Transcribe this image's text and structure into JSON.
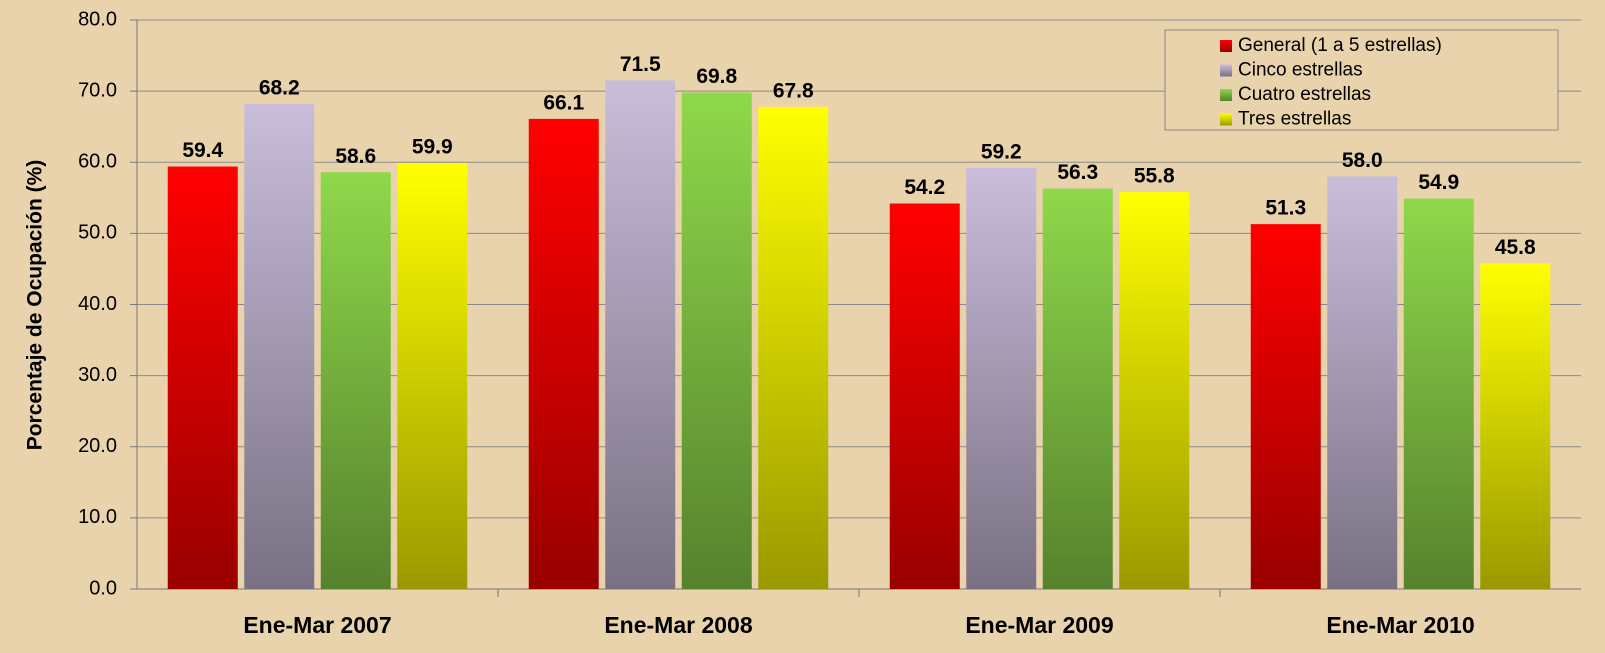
{
  "chart_data": {
    "type": "bar",
    "y_label": "Porcentaje de Ocupación (%)",
    "categories": [
      "Ene-Mar 2007",
      "Ene-Mar 2008",
      "Ene-Mar 2009",
      "Ene-Mar 2010"
    ],
    "series": [
      {
        "name": "General  (1 a 5 estrellas)",
        "color": "#ff0000",
        "values": [
          59.4,
          66.1,
          54.2,
          51.3
        ],
        "value_labels": [
          "59.4",
          "66.1",
          "54.2",
          "51.3"
        ]
      },
      {
        "name": "Cinco estrellas",
        "color": "#c9bddb",
        "values": [
          68.2,
          71.5,
          59.2,
          58.0
        ],
        "value_labels": [
          "68.2",
          "71.5",
          "59.2",
          "58.0"
        ]
      },
      {
        "name": "Cuatro estrellas",
        "color": "#8fd84b",
        "values": [
          58.6,
          69.8,
          56.3,
          54.9
        ],
        "value_labels": [
          "58.6",
          "69.8",
          "56.3",
          "54.9"
        ]
      },
      {
        "name": "Tres estrellas",
        "color": "#ffff00",
        "values": [
          59.9,
          67.8,
          55.8,
          45.8
        ],
        "value_labels": [
          "59.9",
          "67.8",
          "55.8",
          "45.8"
        ]
      }
    ],
    "ylim": [
      0,
      80
    ],
    "yticks": [
      {
        "value": 0,
        "label": "0.0"
      },
      {
        "value": 10,
        "label": "10.0"
      },
      {
        "value": 20,
        "label": "20.0"
      },
      {
        "value": 30,
        "label": "30.0"
      },
      {
        "value": 40,
        "label": "40.0"
      },
      {
        "value": 50,
        "label": "50.0"
      },
      {
        "value": 60,
        "label": "60.0"
      },
      {
        "value": 70,
        "label": "70.0"
      },
      {
        "value": 80,
        "label": "80.0"
      }
    ],
    "grid": true,
    "legend": "top-right"
  }
}
